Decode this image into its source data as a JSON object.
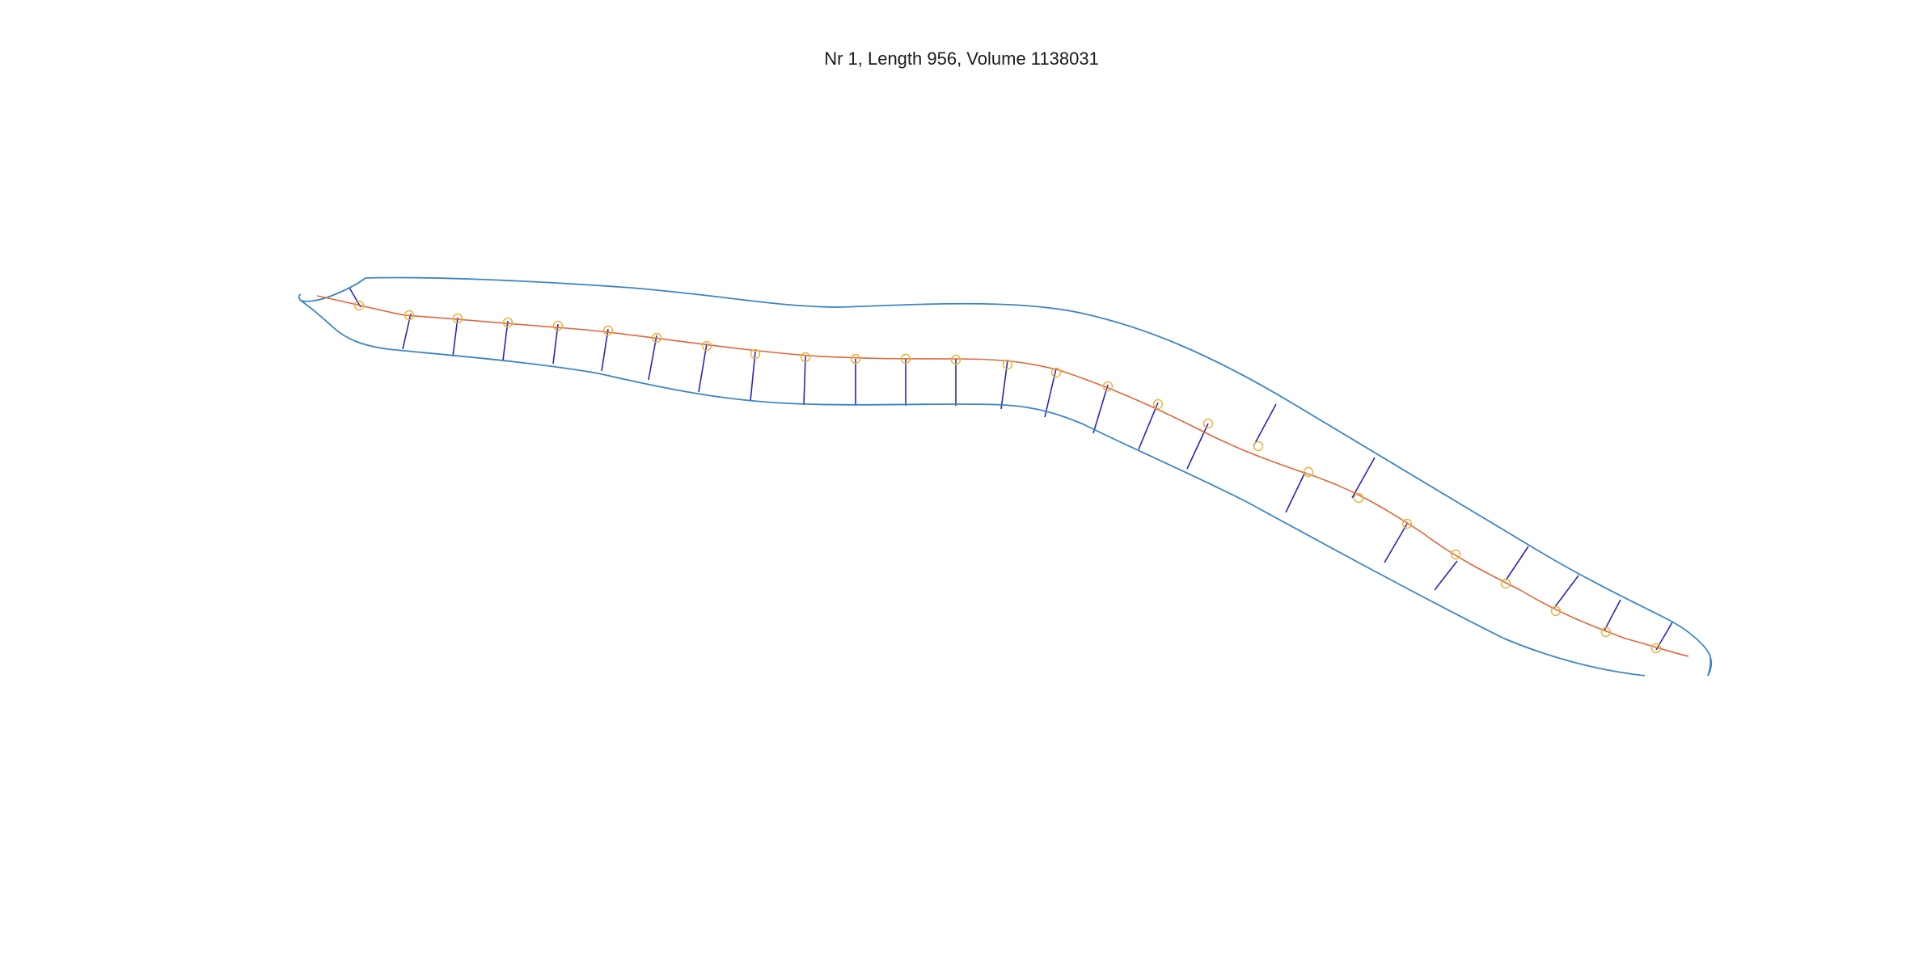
{
  "figure": {
    "title": "Nr 1, Length 956, Volume 1138031"
  },
  "colors": {
    "outline": "#3a86c6",
    "centerline": "#e0663a",
    "marker": "#e9b33a",
    "crossline": "#2626b8",
    "background": "#ffffff"
  },
  "diagram": {
    "type": "worm-skeleton",
    "marker_count": 27,
    "crossline_count": 28
  }
}
